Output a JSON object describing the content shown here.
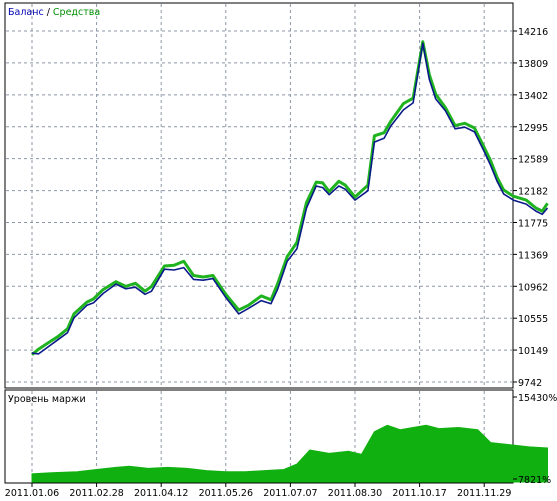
{
  "legend": {
    "balance_label": "Баланс",
    "separator": " / ",
    "equity_label": "Средства"
  },
  "subchart": {
    "label": "Уровень маржи"
  },
  "colors": {
    "background": "#ffffff",
    "grid": "#8c96a6",
    "balance": "#0a1a8a",
    "equity": "#1fb31f",
    "margin_fill": "#10b010",
    "frame": "#000000",
    "balance_legend": "#0000b0",
    "equity_legend": "#009000"
  },
  "chart_data": [
    {
      "type": "line",
      "series_names": [
        "Баланс",
        "Средства"
      ],
      "y_ticks": [
        14216,
        13809,
        13402,
        12995,
        12589,
        12182,
        11775,
        11369,
        10962,
        10555,
        10149,
        9742
      ],
      "y_tick_labels": [
        "14216",
        "13809",
        "13402",
        "12995",
        "12589",
        "12182",
        "11775",
        "11369",
        "10962",
        "10555",
        "10149",
        "9742"
      ],
      "ylim": [
        9742,
        14216
      ],
      "x_ticks": [
        "2011.01.06",
        "2011.02.28",
        "2011.04.12",
        "2011.05.26",
        "2011.07.07",
        "2011.08.30",
        "2011.10.17",
        "2011.11.29"
      ],
      "grid": true,
      "balance_points": [
        [
          0,
          10110
        ],
        [
          0.1,
          10100
        ],
        [
          0.25,
          10190
        ],
        [
          0.4,
          10280
        ],
        [
          0.55,
          10370
        ],
        [
          0.65,
          10560
        ],
        [
          0.85,
          10720
        ],
        [
          0.95,
          10750
        ],
        [
          1.1,
          10870
        ],
        [
          1.3,
          10990
        ],
        [
          1.45,
          10930
        ],
        [
          1.6,
          10950
        ],
        [
          1.75,
          10860
        ],
        [
          1.85,
          10900
        ],
        [
          2.05,
          11180
        ],
        [
          2.2,
          11170
        ],
        [
          2.35,
          11200
        ],
        [
          2.5,
          11050
        ],
        [
          2.65,
          11040
        ],
        [
          2.8,
          11060
        ],
        [
          3.0,
          10820
        ],
        [
          3.2,
          10610
        ],
        [
          3.35,
          10680
        ],
        [
          3.55,
          10780
        ],
        [
          3.7,
          10740
        ],
        [
          3.8,
          10920
        ],
        [
          3.95,
          11280
        ],
        [
          4.1,
          11440
        ],
        [
          4.25,
          11960
        ],
        [
          4.4,
          12240
        ],
        [
          4.5,
          12220
        ],
        [
          4.6,
          12130
        ],
        [
          4.75,
          12240
        ],
        [
          4.85,
          12200
        ],
        [
          5.0,
          12060
        ],
        [
          5.2,
          12180
        ],
        [
          5.3,
          12800
        ],
        [
          5.45,
          12850
        ],
        [
          5.55,
          13000
        ],
        [
          5.75,
          13210
        ],
        [
          5.9,
          13300
        ],
        [
          6.05,
          14060
        ],
        [
          6.15,
          13600
        ],
        [
          6.25,
          13350
        ],
        [
          6.4,
          13200
        ],
        [
          6.55,
          12970
        ],
        [
          6.7,
          12990
        ],
        [
          6.85,
          12930
        ],
        [
          7.0,
          12680
        ],
        [
          7.1,
          12500
        ],
        [
          7.2,
          12300
        ],
        [
          7.3,
          12140
        ],
        [
          7.45,
          12060
        ],
        [
          7.65,
          12010
        ],
        [
          7.8,
          11920
        ],
        [
          7.9,
          11880
        ],
        [
          7.98,
          11960
        ]
      ],
      "equity_points": [
        [
          0,
          10090
        ],
        [
          0.1,
          10160
        ],
        [
          0.25,
          10240
        ],
        [
          0.4,
          10320
        ],
        [
          0.55,
          10420
        ],
        [
          0.65,
          10610
        ],
        [
          0.85,
          10760
        ],
        [
          0.95,
          10800
        ],
        [
          1.1,
          10920
        ],
        [
          1.3,
          11020
        ],
        [
          1.45,
          10960
        ],
        [
          1.6,
          11000
        ],
        [
          1.75,
          10900
        ],
        [
          1.85,
          10960
        ],
        [
          2.05,
          11220
        ],
        [
          2.2,
          11230
        ],
        [
          2.35,
          11280
        ],
        [
          2.5,
          11100
        ],
        [
          2.65,
          11080
        ],
        [
          2.8,
          11100
        ],
        [
          3.0,
          10860
        ],
        [
          3.2,
          10660
        ],
        [
          3.35,
          10720
        ],
        [
          3.55,
          10840
        ],
        [
          3.7,
          10790
        ],
        [
          3.8,
          10990
        ],
        [
          3.95,
          11340
        ],
        [
          4.1,
          11520
        ],
        [
          4.25,
          12030
        ],
        [
          4.4,
          12290
        ],
        [
          4.5,
          12280
        ],
        [
          4.6,
          12170
        ],
        [
          4.75,
          12300
        ],
        [
          4.85,
          12250
        ],
        [
          5.0,
          12100
        ],
        [
          5.2,
          12250
        ],
        [
          5.3,
          12880
        ],
        [
          5.45,
          12920
        ],
        [
          5.55,
          13060
        ],
        [
          5.75,
          13290
        ],
        [
          5.9,
          13360
        ],
        [
          6.05,
          14080
        ],
        [
          6.15,
          13660
        ],
        [
          6.25,
          13410
        ],
        [
          6.4,
          13240
        ],
        [
          6.55,
          13010
        ],
        [
          6.7,
          13040
        ],
        [
          6.85,
          12980
        ],
        [
          7.0,
          12730
        ],
        [
          7.1,
          12560
        ],
        [
          7.2,
          12350
        ],
        [
          7.3,
          12190
        ],
        [
          7.45,
          12110
        ],
        [
          7.65,
          12060
        ],
        [
          7.8,
          11960
        ],
        [
          7.9,
          11920
        ],
        [
          7.98,
          12020
        ]
      ]
    },
    {
      "type": "area",
      "name": "Уровень маржи",
      "y_tick_labels": [
        "15430%",
        "7821%"
      ],
      "ylim": [
        7821,
        15430
      ],
      "points": [
        [
          0,
          8300
        ],
        [
          0.3,
          8400
        ],
        [
          0.7,
          8500
        ],
        [
          1.0,
          8700
        ],
        [
          1.3,
          8900
        ],
        [
          1.5,
          9000
        ],
        [
          1.8,
          8800
        ],
        [
          2.1,
          8900
        ],
        [
          2.4,
          8800
        ],
        [
          2.7,
          8600
        ],
        [
          3.0,
          8500
        ],
        [
          3.3,
          8500
        ],
        [
          3.6,
          8600
        ],
        [
          3.9,
          8700
        ],
        [
          4.1,
          9200
        ],
        [
          4.3,
          10500
        ],
        [
          4.6,
          10200
        ],
        [
          4.9,
          10400
        ],
        [
          5.1,
          10100
        ],
        [
          5.3,
          12200
        ],
        [
          5.5,
          12800
        ],
        [
          5.7,
          12400
        ],
        [
          5.9,
          12600
        ],
        [
          6.1,
          12800
        ],
        [
          6.3,
          12500
        ],
        [
          6.6,
          12600
        ],
        [
          6.9,
          12400
        ],
        [
          7.1,
          11200
        ],
        [
          7.4,
          11000
        ],
        [
          7.7,
          10800
        ],
        [
          7.98,
          10700
        ]
      ]
    }
  ]
}
